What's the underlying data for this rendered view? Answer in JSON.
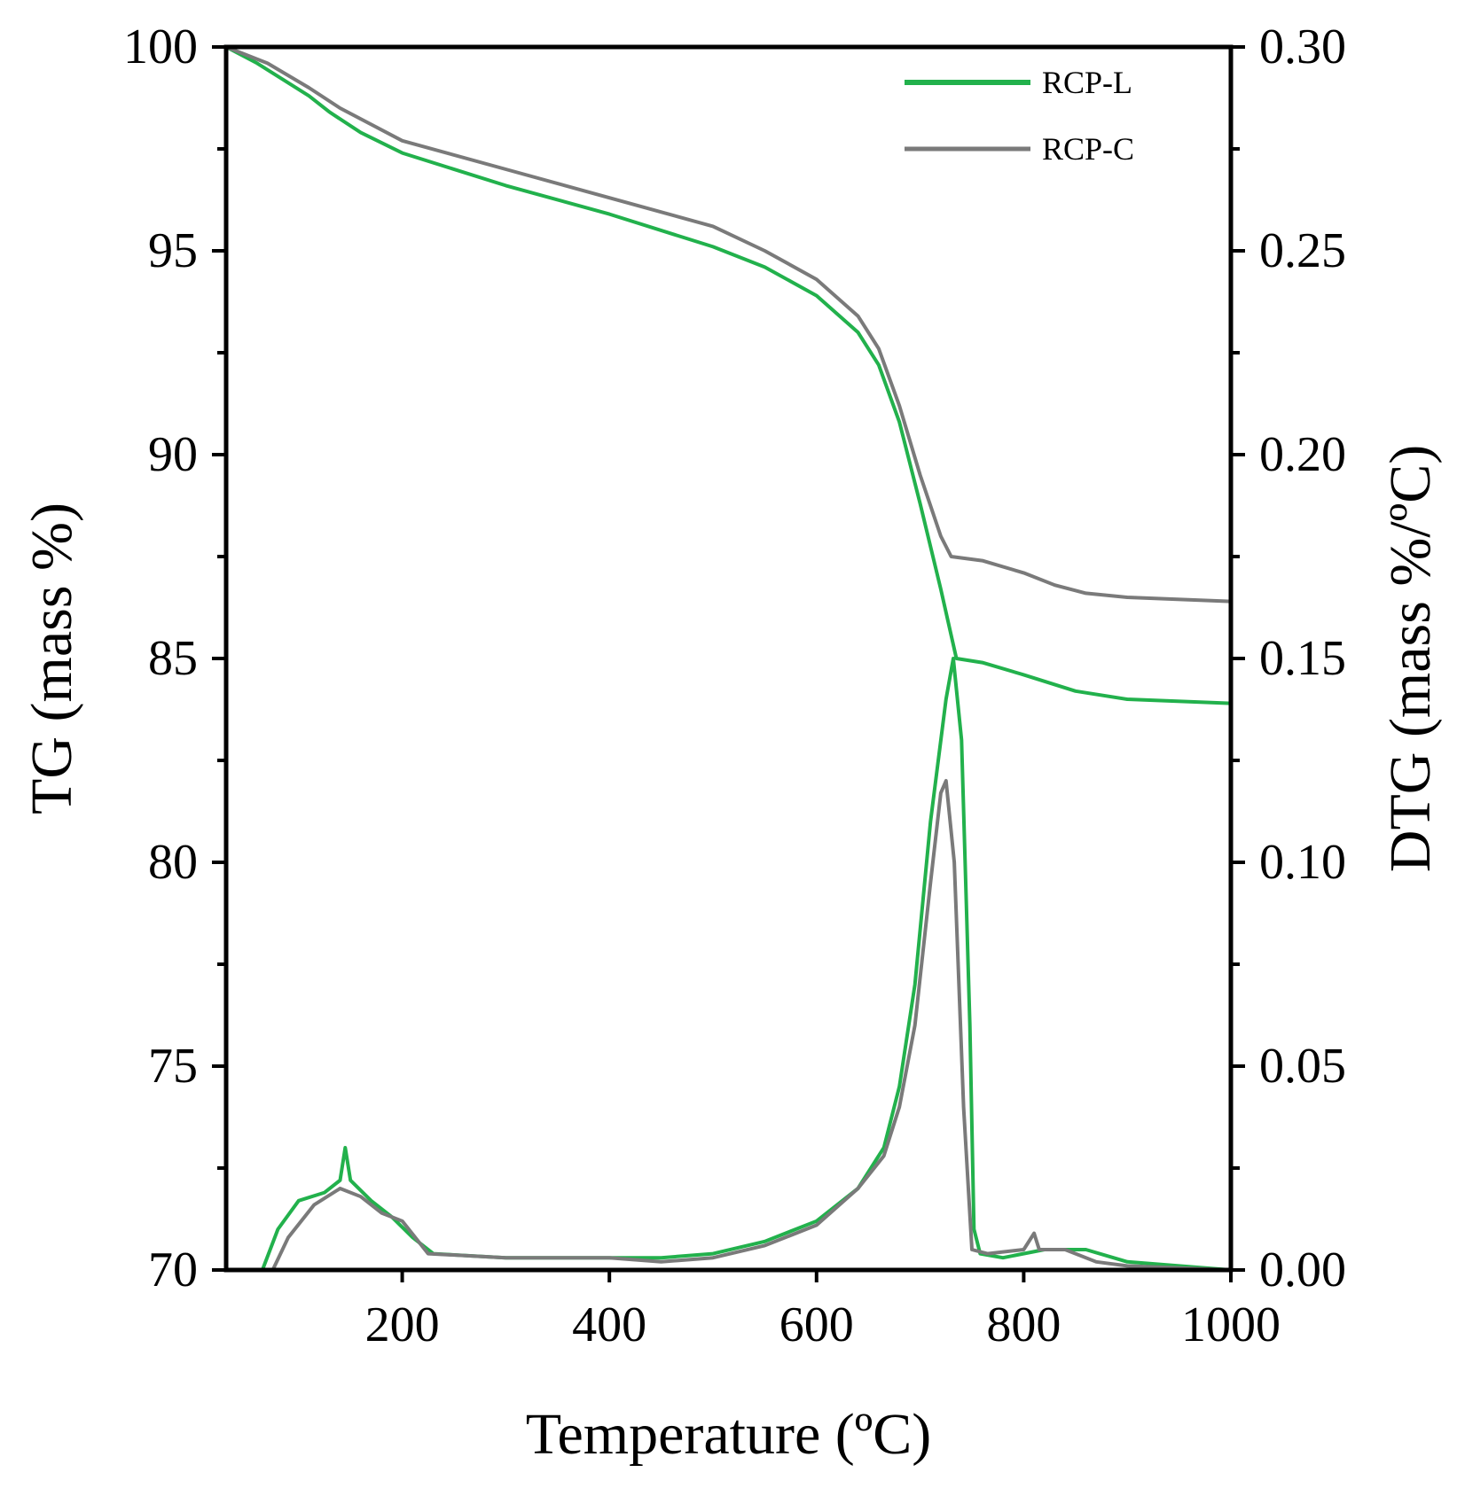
{
  "chart_data": {
    "type": "line",
    "xlabel": "Temperature (ºC)",
    "ylabel_left": "TG (mass %)",
    "ylabel_right": "DTG (mass %/ºC)",
    "xlim": [
      30,
      1000
    ],
    "ylim_left": [
      70,
      100
    ],
    "ylim_right": [
      0,
      0.3
    ],
    "x_ticks": [
      200,
      400,
      600,
      800,
      1000
    ],
    "x_tick_labels": [
      "200",
      "400",
      "600",
      "800",
      "1000"
    ],
    "y_left_ticks": [
      70,
      75,
      80,
      85,
      90,
      95,
      100
    ],
    "y_left_tick_labels": [
      "70",
      "75",
      "80",
      "85",
      "90",
      "95",
      "100"
    ],
    "y_right_ticks": [
      0,
      0.05,
      0.1,
      0.15,
      0.2,
      0.25,
      0.3
    ],
    "y_right_tick_labels": [
      "0.00",
      "0.05",
      "0.10",
      "0.15",
      "0.20",
      "0.25",
      "0.30"
    ],
    "legend_position": "top-right",
    "series": [
      {
        "name": "RCP-L",
        "kind": "TG",
        "axis": "left",
        "color": "#22b14c",
        "points": [
          [
            30,
            100
          ],
          [
            60,
            99.6
          ],
          [
            110,
            98.8
          ],
          [
            130,
            98.4
          ],
          [
            160,
            97.9
          ],
          [
            200,
            97.4
          ],
          [
            300,
            96.6
          ],
          [
            400,
            95.9
          ],
          [
            500,
            95.1
          ],
          [
            550,
            94.6
          ],
          [
            600,
            93.9
          ],
          [
            640,
            93.0
          ],
          [
            660,
            92.2
          ],
          [
            680,
            90.8
          ],
          [
            700,
            88.8
          ],
          [
            720,
            86.7
          ],
          [
            735,
            85.0
          ],
          [
            760,
            84.9
          ],
          [
            800,
            84.6
          ],
          [
            850,
            84.2
          ],
          [
            900,
            84.0
          ],
          [
            1000,
            83.9
          ]
        ]
      },
      {
        "name": "RCP-C",
        "kind": "TG",
        "axis": "left",
        "color": "#7a7a7a",
        "points": [
          [
            30,
            100
          ],
          [
            70,
            99.6
          ],
          [
            110,
            99.0
          ],
          [
            140,
            98.5
          ],
          [
            170,
            98.1
          ],
          [
            200,
            97.7
          ],
          [
            300,
            97.0
          ],
          [
            400,
            96.3
          ],
          [
            500,
            95.6
          ],
          [
            550,
            95.0
          ],
          [
            600,
            94.3
          ],
          [
            640,
            93.4
          ],
          [
            660,
            92.6
          ],
          [
            680,
            91.2
          ],
          [
            700,
            89.5
          ],
          [
            720,
            88.0
          ],
          [
            730,
            87.5
          ],
          [
            760,
            87.4
          ],
          [
            800,
            87.1
          ],
          [
            830,
            86.8
          ],
          [
            860,
            86.6
          ],
          [
            900,
            86.5
          ],
          [
            1000,
            86.4
          ]
        ]
      },
      {
        "name": "RCP-L",
        "kind": "DTG",
        "axis": "right",
        "color": "#22b14c",
        "points": [
          [
            65,
            0.0
          ],
          [
            80,
            0.01
          ],
          [
            100,
            0.017
          ],
          [
            125,
            0.019
          ],
          [
            140,
            0.022
          ],
          [
            145,
            0.03
          ],
          [
            150,
            0.022
          ],
          [
            170,
            0.017
          ],
          [
            190,
            0.013
          ],
          [
            210,
            0.008
          ],
          [
            230,
            0.004
          ],
          [
            300,
            0.003
          ],
          [
            400,
            0.003
          ],
          [
            450,
            0.003
          ],
          [
            500,
            0.004
          ],
          [
            550,
            0.007
          ],
          [
            600,
            0.012
          ],
          [
            640,
            0.02
          ],
          [
            665,
            0.03
          ],
          [
            680,
            0.045
          ],
          [
            695,
            0.07
          ],
          [
            710,
            0.11
          ],
          [
            725,
            0.14
          ],
          [
            732,
            0.15
          ],
          [
            740,
            0.13
          ],
          [
            748,
            0.06
          ],
          [
            752,
            0.01
          ],
          [
            758,
            0.004
          ],
          [
            780,
            0.003
          ],
          [
            820,
            0.005
          ],
          [
            860,
            0.005
          ],
          [
            900,
            0.002
          ],
          [
            950,
            0.001
          ],
          [
            1000,
            0.0
          ]
        ]
      },
      {
        "name": "RCP-C",
        "kind": "DTG",
        "axis": "right",
        "color": "#7a7a7a",
        "points": [
          [
            75,
            0.0
          ],
          [
            90,
            0.008
          ],
          [
            115,
            0.016
          ],
          [
            140,
            0.02
          ],
          [
            160,
            0.018
          ],
          [
            180,
            0.014
          ],
          [
            200,
            0.012
          ],
          [
            225,
            0.004
          ],
          [
            300,
            0.003
          ],
          [
            400,
            0.003
          ],
          [
            450,
            0.002
          ],
          [
            500,
            0.003
          ],
          [
            550,
            0.006
          ],
          [
            600,
            0.011
          ],
          [
            640,
            0.02
          ],
          [
            665,
            0.028
          ],
          [
            680,
            0.04
          ],
          [
            695,
            0.06
          ],
          [
            710,
            0.095
          ],
          [
            720,
            0.117
          ],
          [
            725,
            0.12
          ],
          [
            733,
            0.1
          ],
          [
            742,
            0.04
          ],
          [
            750,
            0.005
          ],
          [
            765,
            0.004
          ],
          [
            800,
            0.005
          ],
          [
            810,
            0.009
          ],
          [
            815,
            0.005
          ],
          [
            840,
            0.005
          ],
          [
            870,
            0.002
          ],
          [
            900,
            0.001
          ],
          [
            1000,
            0.0
          ]
        ]
      }
    ]
  }
}
